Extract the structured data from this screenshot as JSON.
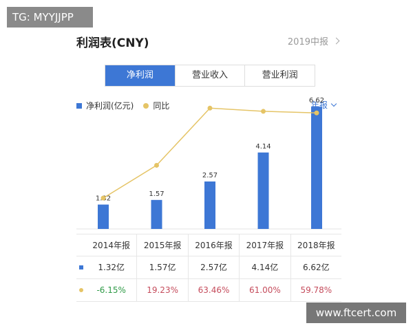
{
  "watermarks": {
    "top_left": "TG: MYYJJPP",
    "bottom_right": "www.ftcert.com"
  },
  "header": {
    "title": "利润表(CNY)",
    "report_period": "2019中报"
  },
  "tabs": [
    {
      "label": "净利润",
      "active": true
    },
    {
      "label": "营业收入",
      "active": false
    },
    {
      "label": "营业利润",
      "active": false
    }
  ],
  "legend": {
    "bar_series": "净利润(亿元)",
    "line_series": "同比"
  },
  "period_selector": {
    "label": "年报"
  },
  "colors": {
    "accent": "#3d77d5",
    "line": "#e5c466",
    "positive": "#c54c5c",
    "negative": "#2e9a46"
  },
  "chart_data": {
    "type": "bar",
    "categories": [
      "2014年报",
      "2015年报",
      "2016年报",
      "2017年报",
      "2018年报"
    ],
    "series": [
      {
        "name": "净利润(亿元)",
        "type": "bar",
        "values": [
          1.32,
          1.57,
          2.57,
          4.14,
          6.62
        ],
        "labels": [
          "1.32",
          "1.57",
          "2.57",
          "4.14",
          "6.62"
        ]
      },
      {
        "name": "同比",
        "type": "line",
        "values": [
          -6.15,
          19.23,
          63.46,
          61.0,
          59.78
        ]
      }
    ],
    "ylim": [
      0,
      7
    ],
    "line_ylim": [
      -30,
      70
    ],
    "grid": false,
    "legend": "top-left"
  },
  "table": {
    "headers": [
      "2014年报",
      "2015年报",
      "2016年报",
      "2017年报",
      "2018年报"
    ],
    "profit_row": [
      "1.32亿",
      "1.57亿",
      "2.57亿",
      "4.14亿",
      "6.62亿"
    ],
    "yoy_row": [
      "-6.15%",
      "19.23%",
      "63.46%",
      "61.00%",
      "59.78%"
    ]
  }
}
